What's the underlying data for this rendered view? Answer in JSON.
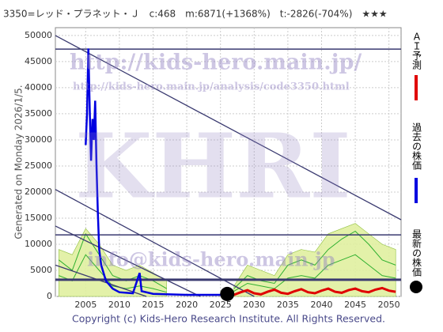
{
  "chart_data": {
    "type": "line",
    "title": "3350=レッド・プラネット・Ｊ　c:468　m:6871(+1368%)　t:-2826(-704%)　★★★",
    "y_label": "Generated on Monday 2026/1/5.",
    "copyright": "Copyright (c) Kids-Hero Research Institute. All Rights Reserved.",
    "watermarks": [
      "http://kids-hero.main.jp/",
      "http://kids-hero.main.jp/analysis/code3350.html",
      "KHRI",
      "info@kids-hero.main.jp"
    ],
    "xlim": [
      2000.5,
      2051.8
    ],
    "ylim": [
      0,
      51500
    ],
    "xticks": [
      2005,
      2010,
      2015,
      2020,
      2025,
      2030,
      2035,
      2040,
      2045,
      2050
    ],
    "yticks": [
      0,
      5000,
      10000,
      15000,
      20000,
      25000,
      30000,
      35000,
      40000,
      45000,
      50000
    ],
    "grid": true,
    "band": {
      "color": "#e0f0a0",
      "x": [
        2001,
        2003,
        2005,
        2007,
        2009,
        2011,
        2013,
        2015,
        2017,
        2019,
        2021,
        2023,
        2025,
        2027,
        2029,
        2031,
        2033,
        2035,
        2037,
        2039,
        2041,
        2043,
        2045,
        2047,
        2049,
        2051
      ],
      "values": [
        9000,
        8000,
        13000,
        10000,
        6000,
        5000,
        6000,
        4500,
        3000,
        null,
        null,
        null,
        null,
        2000,
        6000,
        5000,
        4000,
        8000,
        9000,
        8500,
        12000,
        13000,
        14000,
        12000,
        10000,
        9000
      ]
    },
    "band_lines": [
      {
        "color": "#30b030",
        "values": [
          7000,
          5000,
          12000,
          8000,
          4000,
          3000,
          4000,
          3000,
          1500,
          null,
          null,
          null,
          null,
          1500,
          4000,
          3000,
          2500,
          6000,
          7000,
          6000,
          9000,
          11000,
          12500,
          10000,
          7000,
          6000
        ]
      },
      {
        "color": "#30b030",
        "values": [
          4000,
          3000,
          8000,
          5000,
          2000,
          1500,
          2000,
          1500,
          800,
          null,
          null,
          null,
          null,
          1000,
          2500,
          2000,
          1500,
          3500,
          4000,
          3500,
          6000,
          7000,
          8000,
          6000,
          4000,
          3500
        ]
      }
    ],
    "trend_lines": [
      {
        "x": [
          2000.5,
          2051.8
        ],
        "values": [
          50000,
          14700
        ]
      },
      {
        "x": [
          2000.5,
          2030
        ],
        "values": [
          20500,
          0
        ]
      },
      {
        "x": [
          2000.5,
          2022
        ],
        "values": [
          13500,
          0
        ]
      },
      {
        "x": [
          2000.5,
          2014
        ],
        "values": [
          6000,
          0
        ]
      }
    ],
    "levels": [
      47400,
      11800,
      3200
    ],
    "level_color": "#3a3a70",
    "series": [
      {
        "name": "ＡＩ予測",
        "color": "#e00000",
        "x": [
          2026,
          2027,
          2028,
          2029,
          2030,
          2031,
          2032,
          2033,
          2034,
          2035,
          2036,
          2037,
          2038,
          2039,
          2040,
          2041,
          2042,
          2043,
          2044,
          2045,
          2046,
          2047,
          2048,
          2049,
          2050,
          2051
        ],
        "values": [
          500,
          300,
          800,
          1200,
          600,
          400,
          900,
          1300,
          700,
          500,
          1000,
          1400,
          800,
          600,
          1100,
          1500,
          900,
          700,
          1200,
          1500,
          1000,
          800,
          1300,
          1600,
          1100,
          900
        ]
      },
      {
        "name": "過去の株価",
        "color": "#0000e0",
        "x": [
          2005.0,
          2005.2,
          2005.4,
          2005.6,
          2005.8,
          2006.0,
          2006.2,
          2006.4,
          2006.6,
          2006.8,
          2007.0,
          2007.3,
          2008,
          2009,
          2010,
          2012,
          2013,
          2013.3,
          2015,
          2020,
          2025,
          2026
        ],
        "values": [
          29000,
          35000,
          47500,
          36000,
          26000,
          34000,
          30000,
          37500,
          25000,
          16000,
          9000,
          6000,
          3000,
          1500,
          800,
          600,
          4500,
          1000,
          500,
          300,
          300,
          468
        ]
      },
      {
        "name": "最新の株価",
        "color": "#000000",
        "x": [
          2026.0
        ],
        "values": [
          468
        ]
      }
    ]
  }
}
